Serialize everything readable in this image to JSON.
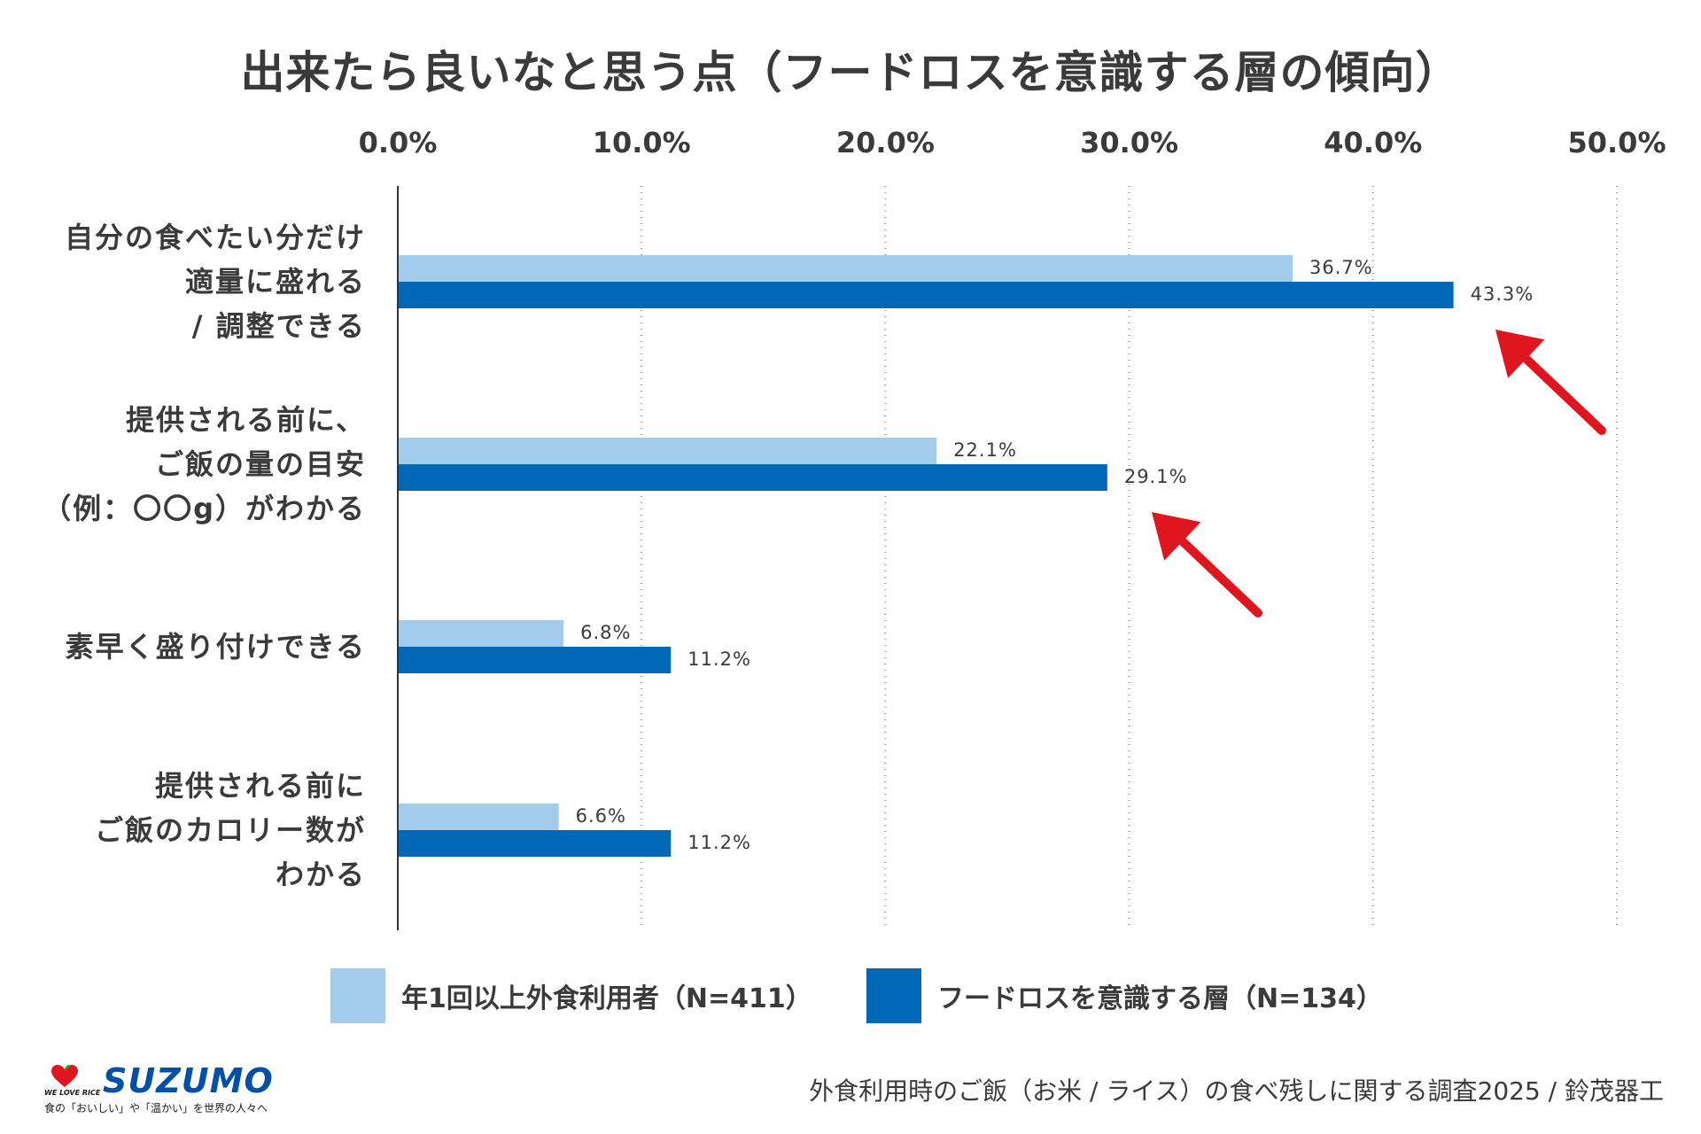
{
  "title": "出来たら良いなと思う点（フードロスを意識する層の傾向）",
  "chart_data": {
    "type": "bar",
    "orientation": "horizontal",
    "title": "出来たら良いなと思う点（フードロスを意識する層の傾向）",
    "xlim": [
      0,
      50
    ],
    "x_ticks": [
      "0.0%",
      "10.0%",
      "20.0%",
      "30.0%",
      "40.0%",
      "50.0%"
    ],
    "x_tick_values": [
      0,
      10,
      20,
      30,
      40,
      50
    ],
    "grid": "vertical dotted",
    "categories": [
      [
        "自分の食べたい分だけ",
        "適量に盛れる",
        "/ 調整できる"
      ],
      [
        "提供される前に、",
        "ご飯の量の目安",
        "（例：〇〇g）がわかる"
      ],
      [
        "素早く盛り付けできる"
      ],
      [
        "提供される前に",
        "ご飯のカロリー数が",
        "わかる"
      ]
    ],
    "series": [
      {
        "name": "年1回以上外食利用者（N=411）",
        "color": "#a3cbeb",
        "values": [
          36.7,
          22.1,
          6.8,
          6.6
        ],
        "labels": [
          "36.7%",
          "22.1%",
          "6.8%",
          "6.6%"
        ]
      },
      {
        "name": "フードロスを意識する層（N=134）",
        "color": "#0068b7",
        "values": [
          43.3,
          29.1,
          11.2,
          11.2
        ],
        "labels": [
          "43.3%",
          "29.1%",
          "11.2%",
          "11.2%"
        ]
      }
    ],
    "annotations": [
      {
        "type": "arrow",
        "color": "#e0161f",
        "points_to": "43.3%"
      },
      {
        "type": "arrow",
        "color": "#e0161f",
        "points_to": "29.1%"
      }
    ],
    "legend": "bottom"
  },
  "legend": {
    "items": [
      {
        "label": "年1回以上外食利用者（N=411）",
        "color": "#a3cbeb"
      },
      {
        "label": "フードロスを意識する層（N=134）",
        "color": "#0068b7"
      }
    ]
  },
  "logo": {
    "text": "SUZUMO",
    "sub": "WE LOVE RICE",
    "tagline": "食の「おいしい」や「温かい」を世界の人々へ"
  },
  "source": "外食利用時のご飯（お米 / ライス）の食べ残しに関する調査2025 / 鈴茂器工"
}
